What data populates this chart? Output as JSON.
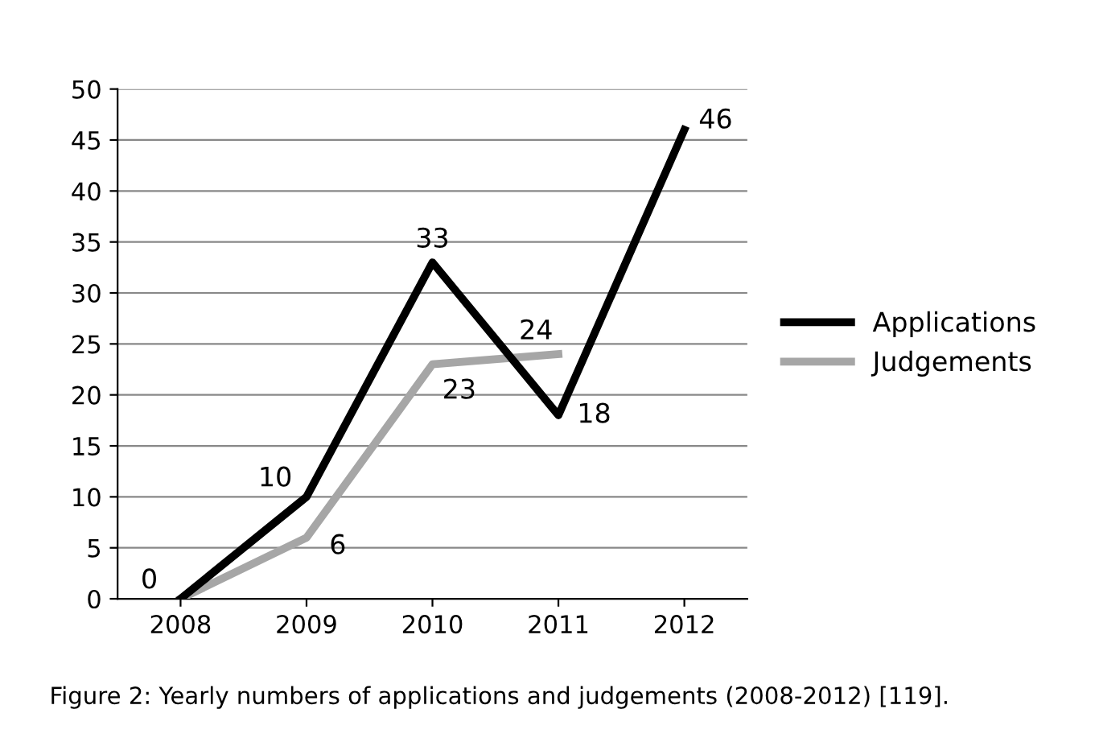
{
  "chart_data": {
    "type": "line",
    "categories": [
      "2008",
      "2009",
      "2010",
      "2011",
      "2012"
    ],
    "series": [
      {
        "name": "Applications",
        "color": "#000000",
        "values": [
          0,
          10,
          33,
          18,
          46
        ],
        "value_labels": [
          "0",
          "10",
          "33",
          "18",
          "46"
        ]
      },
      {
        "name": "Judgements",
        "color": "#a6a6a6",
        "values": [
          0,
          6,
          23,
          24,
          null
        ],
        "value_labels": [
          null,
          "6",
          "23",
          "24",
          null
        ]
      }
    ],
    "ylim": [
      0,
      50
    ],
    "yticks": [
      0,
      5,
      10,
      15,
      20,
      25,
      30,
      35,
      40,
      45,
      50
    ],
    "grid": "y",
    "legend": "right",
    "marker": "none",
    "line_style": "solid",
    "annotations": [
      "Figure 2: Yearly numbers of applications and judgements (2008-2012) [119]."
    ]
  }
}
